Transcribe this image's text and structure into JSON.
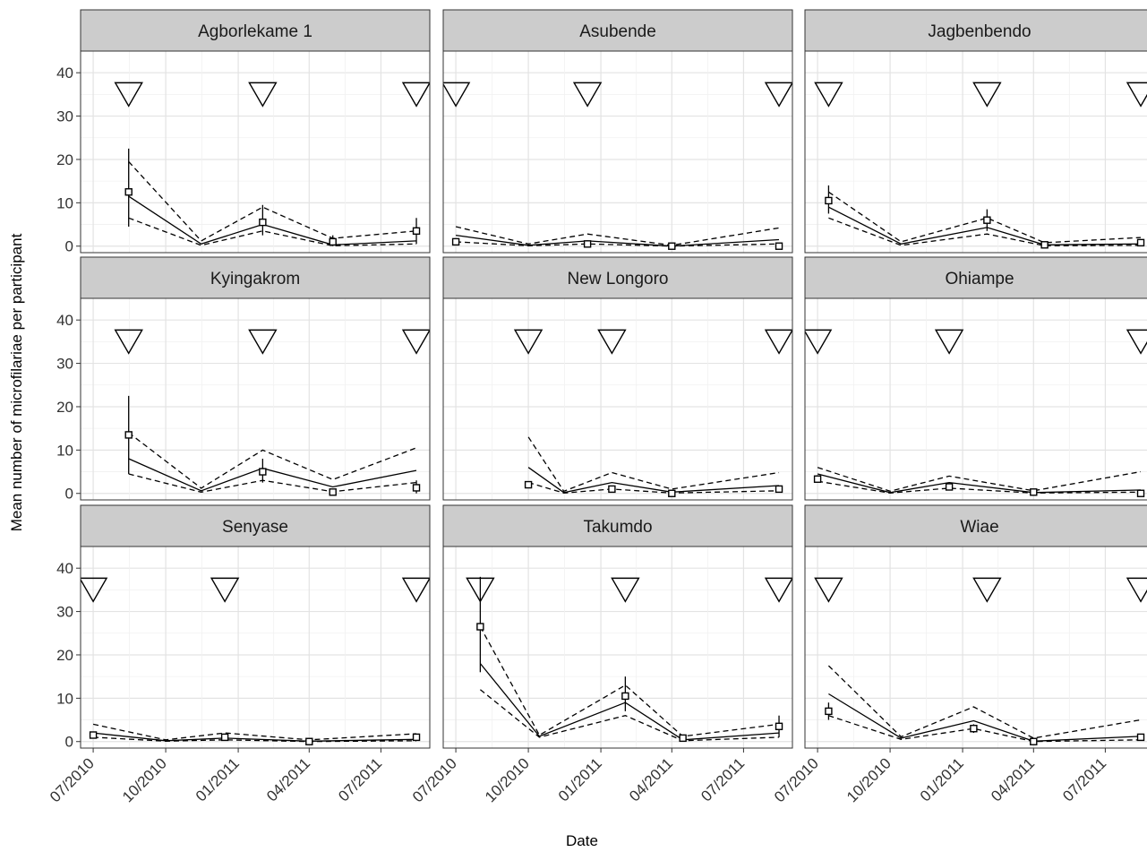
{
  "chart_data": {
    "type": "line",
    "x_axis_label": "Date",
    "y_axis_label": "Mean number of microfilariae per participant",
    "x_ticks": [
      "07/2010",
      "10/2010",
      "01/2011",
      "04/2011",
      "07/2011"
    ],
    "x_tick_dates": [
      "2010-07-01",
      "2010-10-01",
      "2011-01-01",
      "2011-04-01",
      "2011-07-01"
    ],
    "x_range": [
      "2010-06-15",
      "2011-09-01"
    ],
    "y_ticks": [
      0,
      10,
      20,
      30,
      40
    ],
    "y_range": [
      -1.5,
      45
    ],
    "grid": true,
    "facet_layout": "3x3",
    "facets": [
      {
        "name": "Agborlekame 1",
        "treatment_dates": [
          "2010-08-15",
          "2011-02-01",
          "2011-08-15"
        ],
        "model_dates": [
          "2010-08-15",
          "2010-11-15",
          "2011-02-01",
          "2011-05-01",
          "2011-08-15"
        ],
        "model_mean": [
          11.5,
          0.5,
          5,
          0.3,
          1.2
        ],
        "model_lower": [
          6.5,
          0.2,
          3.5,
          0.1,
          0.5
        ],
        "model_upper": [
          19.5,
          1.2,
          9,
          1.8,
          3.5
        ],
        "observed_dates": [
          "2010-08-15",
          "2011-02-01",
          "2011-05-01",
          "2011-08-15"
        ],
        "observed_mean": [
          12.5,
          5.5,
          1,
          3.5
        ],
        "observed_lower": [
          4.5,
          2.5,
          0,
          0.5
        ],
        "observed_upper": [
          22.5,
          9.5,
          2.5,
          6.5
        ]
      },
      {
        "name": "Asubende",
        "treatment_dates": [
          "2010-07-01",
          "2010-12-15",
          "2011-08-15"
        ],
        "model_dates": [
          "2010-07-01",
          "2010-10-01",
          "2010-12-15",
          "2011-04-01",
          "2011-08-15"
        ],
        "model_mean": [
          2.5,
          0.2,
          1.2,
          0,
          1.5
        ],
        "model_lower": [
          1,
          0.1,
          0.5,
          0,
          0.5
        ],
        "model_upper": [
          4.5,
          0.5,
          2.8,
          0.2,
          4.2
        ],
        "observed_dates": [
          "2010-07-01",
          "2010-12-15",
          "2011-04-01",
          "2011-08-15"
        ],
        "observed_mean": [
          1,
          0.5,
          0,
          0
        ],
        "observed_lower": [
          0.5,
          0,
          0,
          0
        ],
        "observed_upper": [
          1.5,
          1,
          0.2,
          0.2
        ]
      },
      {
        "name": "Jagbenbendo",
        "treatment_dates": [
          "2010-07-15",
          "2011-02-01",
          "2011-08-15"
        ],
        "model_dates": [
          "2010-07-15",
          "2010-10-15",
          "2011-02-01",
          "2011-04-15",
          "2011-08-15"
        ],
        "model_mean": [
          9,
          0.5,
          4.3,
          0.3,
          0.5
        ],
        "model_lower": [
          6.5,
          0.2,
          2.8,
          0.1,
          0.2
        ],
        "model_upper": [
          12.5,
          1,
          6.5,
          0.8,
          2
        ],
        "observed_dates": [
          "2010-07-15",
          "2011-02-01",
          "2011-04-15",
          "2011-08-15"
        ],
        "observed_mean": [
          10.5,
          6,
          0.3,
          0.8
        ],
        "observed_lower": [
          7.5,
          3.5,
          0,
          0.2
        ],
        "observed_upper": [
          14,
          8.5,
          0.6,
          1.5
        ]
      },
      {
        "name": "Kyingakrom",
        "treatment_dates": [
          "2010-08-15",
          "2011-02-01",
          "2011-08-15"
        ],
        "model_dates": [
          "2010-08-15",
          "2010-11-15",
          "2011-02-01",
          "2011-05-01",
          "2011-08-15"
        ],
        "model_mean": [
          8,
          0.6,
          5.8,
          1.5,
          5.3
        ],
        "model_lower": [
          4.5,
          0.3,
          3,
          0.4,
          2.5
        ],
        "model_upper": [
          14,
          1.2,
          10,
          3.2,
          10.5
        ],
        "observed_dates": [
          "2010-08-15",
          "2011-02-01",
          "2011-05-01",
          "2011-08-15"
        ],
        "observed_mean": [
          13.5,
          5,
          0.3,
          1.3
        ],
        "observed_lower": [
          4.5,
          2.5,
          0,
          0
        ],
        "observed_upper": [
          22.5,
          8,
          0.6,
          3
        ]
      },
      {
        "name": "New Longoro",
        "treatment_dates": [
          "2010-10-01",
          "2011-01-15",
          "2011-08-15"
        ],
        "model_dates": [
          "2010-10-01",
          "2010-11-15",
          "2011-01-15",
          "2011-04-01",
          "2011-08-15"
        ],
        "model_mean": [
          6,
          0.2,
          2.5,
          0.3,
          1.8
        ],
        "model_lower": [
          2.5,
          0.1,
          1,
          0.1,
          0.6
        ],
        "model_upper": [
          13,
          0.5,
          4.8,
          1,
          4.8
        ],
        "observed_dates": [
          "2010-10-01",
          "2011-01-15",
          "2011-04-01",
          "2011-08-15"
        ],
        "observed_mean": [
          2,
          1,
          0,
          1
        ],
        "observed_lower": [
          1.2,
          0.4,
          0,
          0.4
        ],
        "observed_upper": [
          2.8,
          1.8,
          0.2,
          1.6
        ]
      },
      {
        "name": "Ohiampe",
        "treatment_dates": [
          "2010-07-01",
          "2010-12-15",
          "2011-08-15"
        ],
        "model_dates": [
          "2010-07-01",
          "2010-10-01",
          "2010-12-15",
          "2011-04-01",
          "2011-08-15"
        ],
        "model_mean": [
          4.5,
          0.2,
          2.5,
          0.2,
          0.8
        ],
        "model_lower": [
          2.8,
          0.1,
          1.2,
          0.1,
          0.3
        ],
        "model_upper": [
          6,
          0.5,
          4,
          0.6,
          5
        ],
        "observed_dates": [
          "2010-07-01",
          "2010-12-15",
          "2011-04-01",
          "2011-08-15"
        ],
        "observed_mean": [
          3.3,
          1.5,
          0.3,
          0
        ],
        "observed_lower": [
          2.5,
          0.8,
          0,
          0
        ],
        "observed_upper": [
          4.2,
          2.2,
          0.6,
          0.2
        ]
      },
      {
        "name": "Senyase",
        "treatment_dates": [
          "2010-07-01",
          "2010-12-15",
          "2011-08-15"
        ],
        "model_dates": [
          "2010-07-01",
          "2010-10-01",
          "2010-12-15",
          "2011-04-01",
          "2011-08-15"
        ],
        "model_mean": [
          2,
          0.2,
          0.8,
          0.1,
          0.5
        ],
        "model_lower": [
          1,
          0.1,
          0.4,
          0,
          0.2
        ],
        "model_upper": [
          4,
          0.4,
          2,
          0.4,
          1.8
        ],
        "observed_dates": [
          "2010-07-01",
          "2010-12-15",
          "2011-04-01",
          "2011-08-15"
        ],
        "observed_mean": [
          1.5,
          1,
          0,
          1
        ],
        "observed_lower": [
          1,
          0.5,
          0,
          0.5
        ],
        "observed_upper": [
          2,
          1.5,
          0.2,
          1.5
        ]
      },
      {
        "name": "Takumdo",
        "treatment_dates": [
          "2010-08-01",
          "2011-02-01",
          "2011-08-15"
        ],
        "model_dates": [
          "2010-08-01",
          "2010-10-15",
          "2011-02-01",
          "2011-04-15",
          "2011-08-15"
        ],
        "model_mean": [
          18,
          1.2,
          9,
          0.4,
          2
        ],
        "model_lower": [
          12,
          1,
          6,
          0.2,
          1
        ],
        "model_upper": [
          26.5,
          1.5,
          13,
          1.2,
          4
        ],
        "observed_dates": [
          "2010-08-01",
          "2011-02-01",
          "2011-04-15",
          "2011-08-15"
        ],
        "observed_mean": [
          26.5,
          10.5,
          0.8,
          3.5
        ],
        "observed_lower": [
          16,
          7,
          0.3,
          1
        ],
        "observed_upper": [
          38,
          15,
          1.3,
          6
        ]
      },
      {
        "name": "Wiae",
        "treatment_dates": [
          "2010-07-15",
          "2011-02-01",
          "2011-08-15"
        ],
        "model_dates": [
          "2010-07-15",
          "2010-10-15",
          "2011-01-15",
          "2011-04-01",
          "2011-08-15"
        ],
        "model_mean": [
          11,
          0.8,
          4.8,
          0.1,
          1.2
        ],
        "model_lower": [
          6,
          0.5,
          3,
          0,
          0.4
        ],
        "model_upper": [
          17.5,
          1.1,
          8,
          0.8,
          5
        ],
        "observed_dates": [
          "2010-07-15",
          "2011-01-15",
          "2011-04-01",
          "2011-08-15"
        ],
        "observed_mean": [
          7,
          3,
          0,
          1
        ],
        "observed_lower": [
          5,
          2,
          0,
          0.5
        ],
        "observed_upper": [
          9,
          4,
          0.2,
          1.5
        ]
      }
    ]
  }
}
